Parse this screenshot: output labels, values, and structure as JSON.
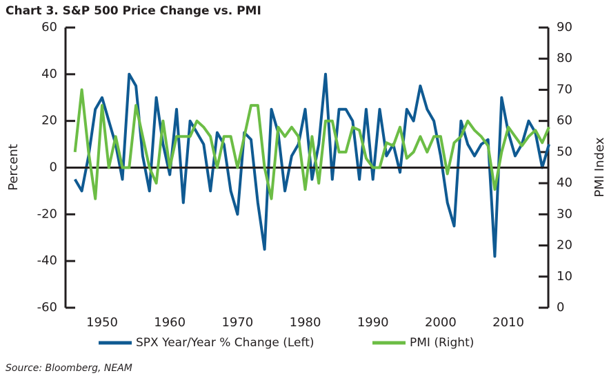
{
  "chart_data": {
    "type": "line",
    "title": "Chart 3. S&P 500 Price Change vs. PMI",
    "ylabel": "Percent",
    "y2label": "PMI Index",
    "source": "Source: Bloomberg, NEAM",
    "x": [
      1946,
      1947,
      1948,
      1949,
      1950,
      1951,
      1952,
      1953,
      1954,
      1955,
      1956,
      1957,
      1958,
      1959,
      1960,
      1961,
      1962,
      1963,
      1964,
      1965,
      1966,
      1967,
      1968,
      1969,
      1970,
      1971,
      1972,
      1973,
      1974,
      1975,
      1976,
      1977,
      1978,
      1979,
      1980,
      1981,
      1982,
      1983,
      1984,
      1985,
      1986,
      1987,
      1988,
      1989,
      1990,
      1991,
      1992,
      1993,
      1994,
      1995,
      1996,
      1997,
      1998,
      1999,
      2000,
      2001,
      2002,
      2003,
      2004,
      2005,
      2006,
      2007,
      2008,
      2009,
      2010,
      2011,
      2012,
      2013,
      2014,
      2015,
      2016
    ],
    "series": [
      {
        "name": "SPX Year/Year % Change (Left)",
        "color": "#0f5a92",
        "axis": "y",
        "values": [
          -5,
          -10,
          5,
          25,
          30,
          20,
          10,
          -5,
          40,
          35,
          5,
          -10,
          30,
          10,
          -3,
          25,
          -15,
          20,
          15,
          10,
          -10,
          15,
          10,
          -10,
          -20,
          15,
          12,
          -15,
          -35,
          25,
          15,
          -10,
          5,
          10,
          25,
          -5,
          10,
          40,
          -5,
          25,
          25,
          20,
          -5,
          25,
          -5,
          25,
          5,
          10,
          -2,
          25,
          20,
          35,
          25,
          20,
          5,
          -15,
          -25,
          20,
          10,
          5,
          10,
          12,
          -38,
          30,
          15,
          5,
          10,
          20,
          15,
          0,
          10
        ]
      },
      {
        "name": "PMI (Right)",
        "color": "#6cbd45",
        "axis": "y2",
        "values": [
          50,
          70,
          50,
          35,
          65,
          45,
          55,
          45,
          45,
          65,
          55,
          45,
          40,
          60,
          45,
          55,
          55,
          55,
          60,
          58,
          55,
          45,
          55,
          55,
          45,
          55,
          65,
          65,
          45,
          35,
          58,
          55,
          58,
          55,
          38,
          55,
          40,
          60,
          60,
          50,
          50,
          58,
          57,
          48,
          45,
          45,
          53,
          52,
          58,
          48,
          50,
          55,
          50,
          55,
          55,
          43,
          53,
          55,
          60,
          57,
          55,
          52,
          38,
          50,
          58,
          55,
          52,
          55,
          57,
          53,
          58
        ]
      }
    ],
    "xlim": [
      1944.6,
      2015.9
    ],
    "xticks": [
      1950,
      1960,
      1970,
      1980,
      1990,
      2000,
      2010
    ],
    "ylim": [
      -60,
      60
    ],
    "yticks": [
      -60,
      -40,
      -20,
      0,
      20,
      40,
      60
    ],
    "y2lim": [
      0,
      90
    ],
    "y2ticks": [
      0,
      10,
      20,
      30,
      40,
      50,
      60,
      70,
      80,
      90
    ],
    "legend": "bottom"
  }
}
